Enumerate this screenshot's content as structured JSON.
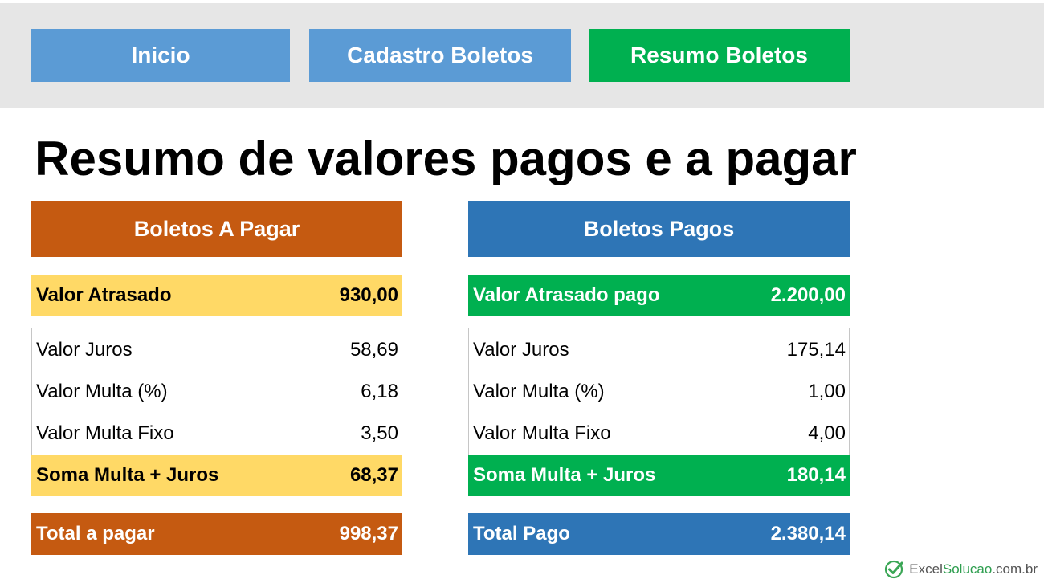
{
  "nav": {
    "inicio": "Inicio",
    "cadastro": "Cadastro Boletos",
    "resumo": "Resumo Boletos"
  },
  "page_title": "Resumo de valores pagos e a pagar",
  "a_pagar": {
    "header": "Boletos A Pagar",
    "valor_atrasado_label": "Valor Atrasado",
    "valor_atrasado": "930,00",
    "juros_label": "Valor Juros",
    "juros": "58,69",
    "multa_pct_label": "Valor Multa (%)",
    "multa_pct": "6,18",
    "multa_fixo_label": "Valor Multa Fixo",
    "multa_fixo": "3,50",
    "soma_label": "Soma Multa + Juros",
    "soma": "68,37",
    "total_label": "Total a pagar",
    "total": "998,37"
  },
  "pagos": {
    "header": "Boletos Pagos",
    "valor_atrasado_label": "Valor Atrasado pago",
    "valor_atrasado": "2.200,00",
    "juros_label": "Valor Juros",
    "juros": "175,14",
    "multa_pct_label": "Valor Multa (%)",
    "multa_pct": "1,00",
    "multa_fixo_label": "Valor Multa Fixo",
    "multa_fixo": "4,00",
    "soma_label": "Soma Multa + Juros",
    "soma": "180,14",
    "total_label": "Total Pago",
    "total": "2.380,14"
  },
  "logo": {
    "part1": "Excel",
    "part2": "Solucao",
    "part3": ".com.br",
    "icon": "check-circle-icon"
  },
  "colors": {
    "nav_blue": "#5b9bd5",
    "nav_green": "#00b050",
    "orange": "#c55a11",
    "blue": "#2e75b6",
    "yellow": "#ffd966",
    "green": "#00b050",
    "topbar_gray": "#e6e6e6"
  }
}
